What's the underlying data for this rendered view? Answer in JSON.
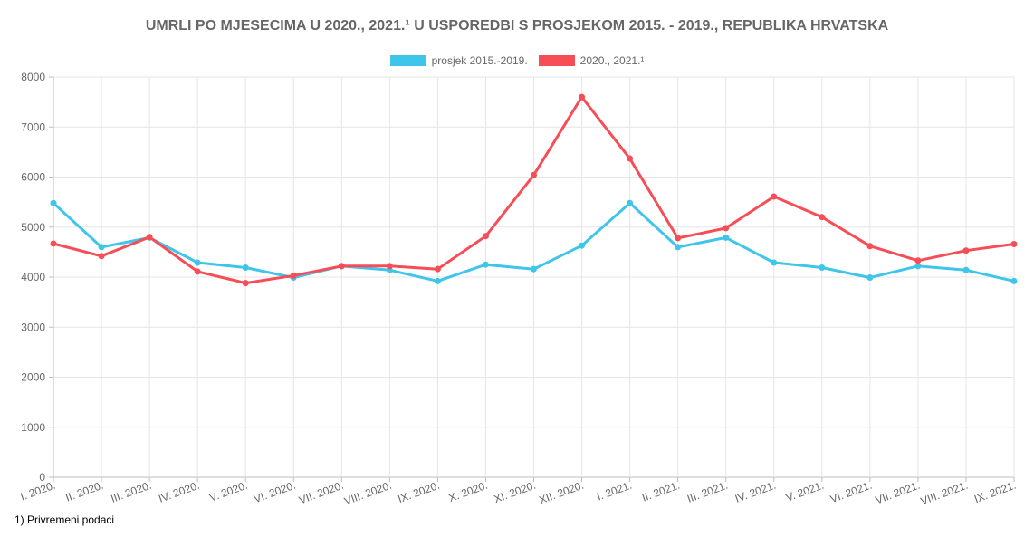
{
  "title": "UMRLI PO MJESECIMA U 2020., 2021.¹ U USPOREDBI S PROSJEKOM 2015. - 2019., REPUBLIKA HRVATSKA",
  "footnote": "1) Privremeni podaci",
  "chart_data": {
    "type": "line",
    "title": "UMRLI PO MJESECIMA U 2020., 2021.¹ U USPOREDBI S PROSJEKOM 2015. - 2019., REPUBLIKA HRVATSKA",
    "categories": [
      "I. 2020.",
      "II. 2020.",
      "III. 2020.",
      "IV. 2020.",
      "V. 2020.",
      "VI. 2020.",
      "VII. 2020.",
      "VIII. 2020.",
      "IX. 2020.",
      "X. 2020.",
      "XI. 2020.",
      "XII. 2020.",
      "I. 2021.",
      "II. 2021.",
      "III. 2021.",
      "IV. 2021.",
      "V. 2021.",
      "VI. 2021.",
      "VII. 2021.",
      "VIII. 2021.",
      "IX. 2021."
    ],
    "series": [
      {
        "name": "prosjek 2015.-2019.",
        "color": "#3fc5ea",
        "values": [
          5480,
          4600,
          4790,
          4290,
          4190,
          3990,
          4220,
          4140,
          3920,
          4250,
          4160,
          4630,
          5480,
          4600,
          4790,
          4290,
          4190,
          3990,
          4220,
          4140,
          3920
        ]
      },
      {
        "name": "2020., 2021.¹",
        "color": "#f74d56",
        "values": [
          4670,
          4420,
          4800,
          4110,
          3880,
          4030,
          4220,
          4220,
          4160,
          4820,
          6040,
          7600,
          6370,
          4780,
          4980,
          5610,
          5200,
          4620,
          4330,
          4530,
          4660
        ]
      }
    ],
    "ylim": [
      0,
      8000
    ],
    "yticks": [
      0,
      1000,
      2000,
      3000,
      4000,
      5000,
      6000,
      7000,
      8000
    ],
    "grid": true,
    "legend": "top-center"
  }
}
